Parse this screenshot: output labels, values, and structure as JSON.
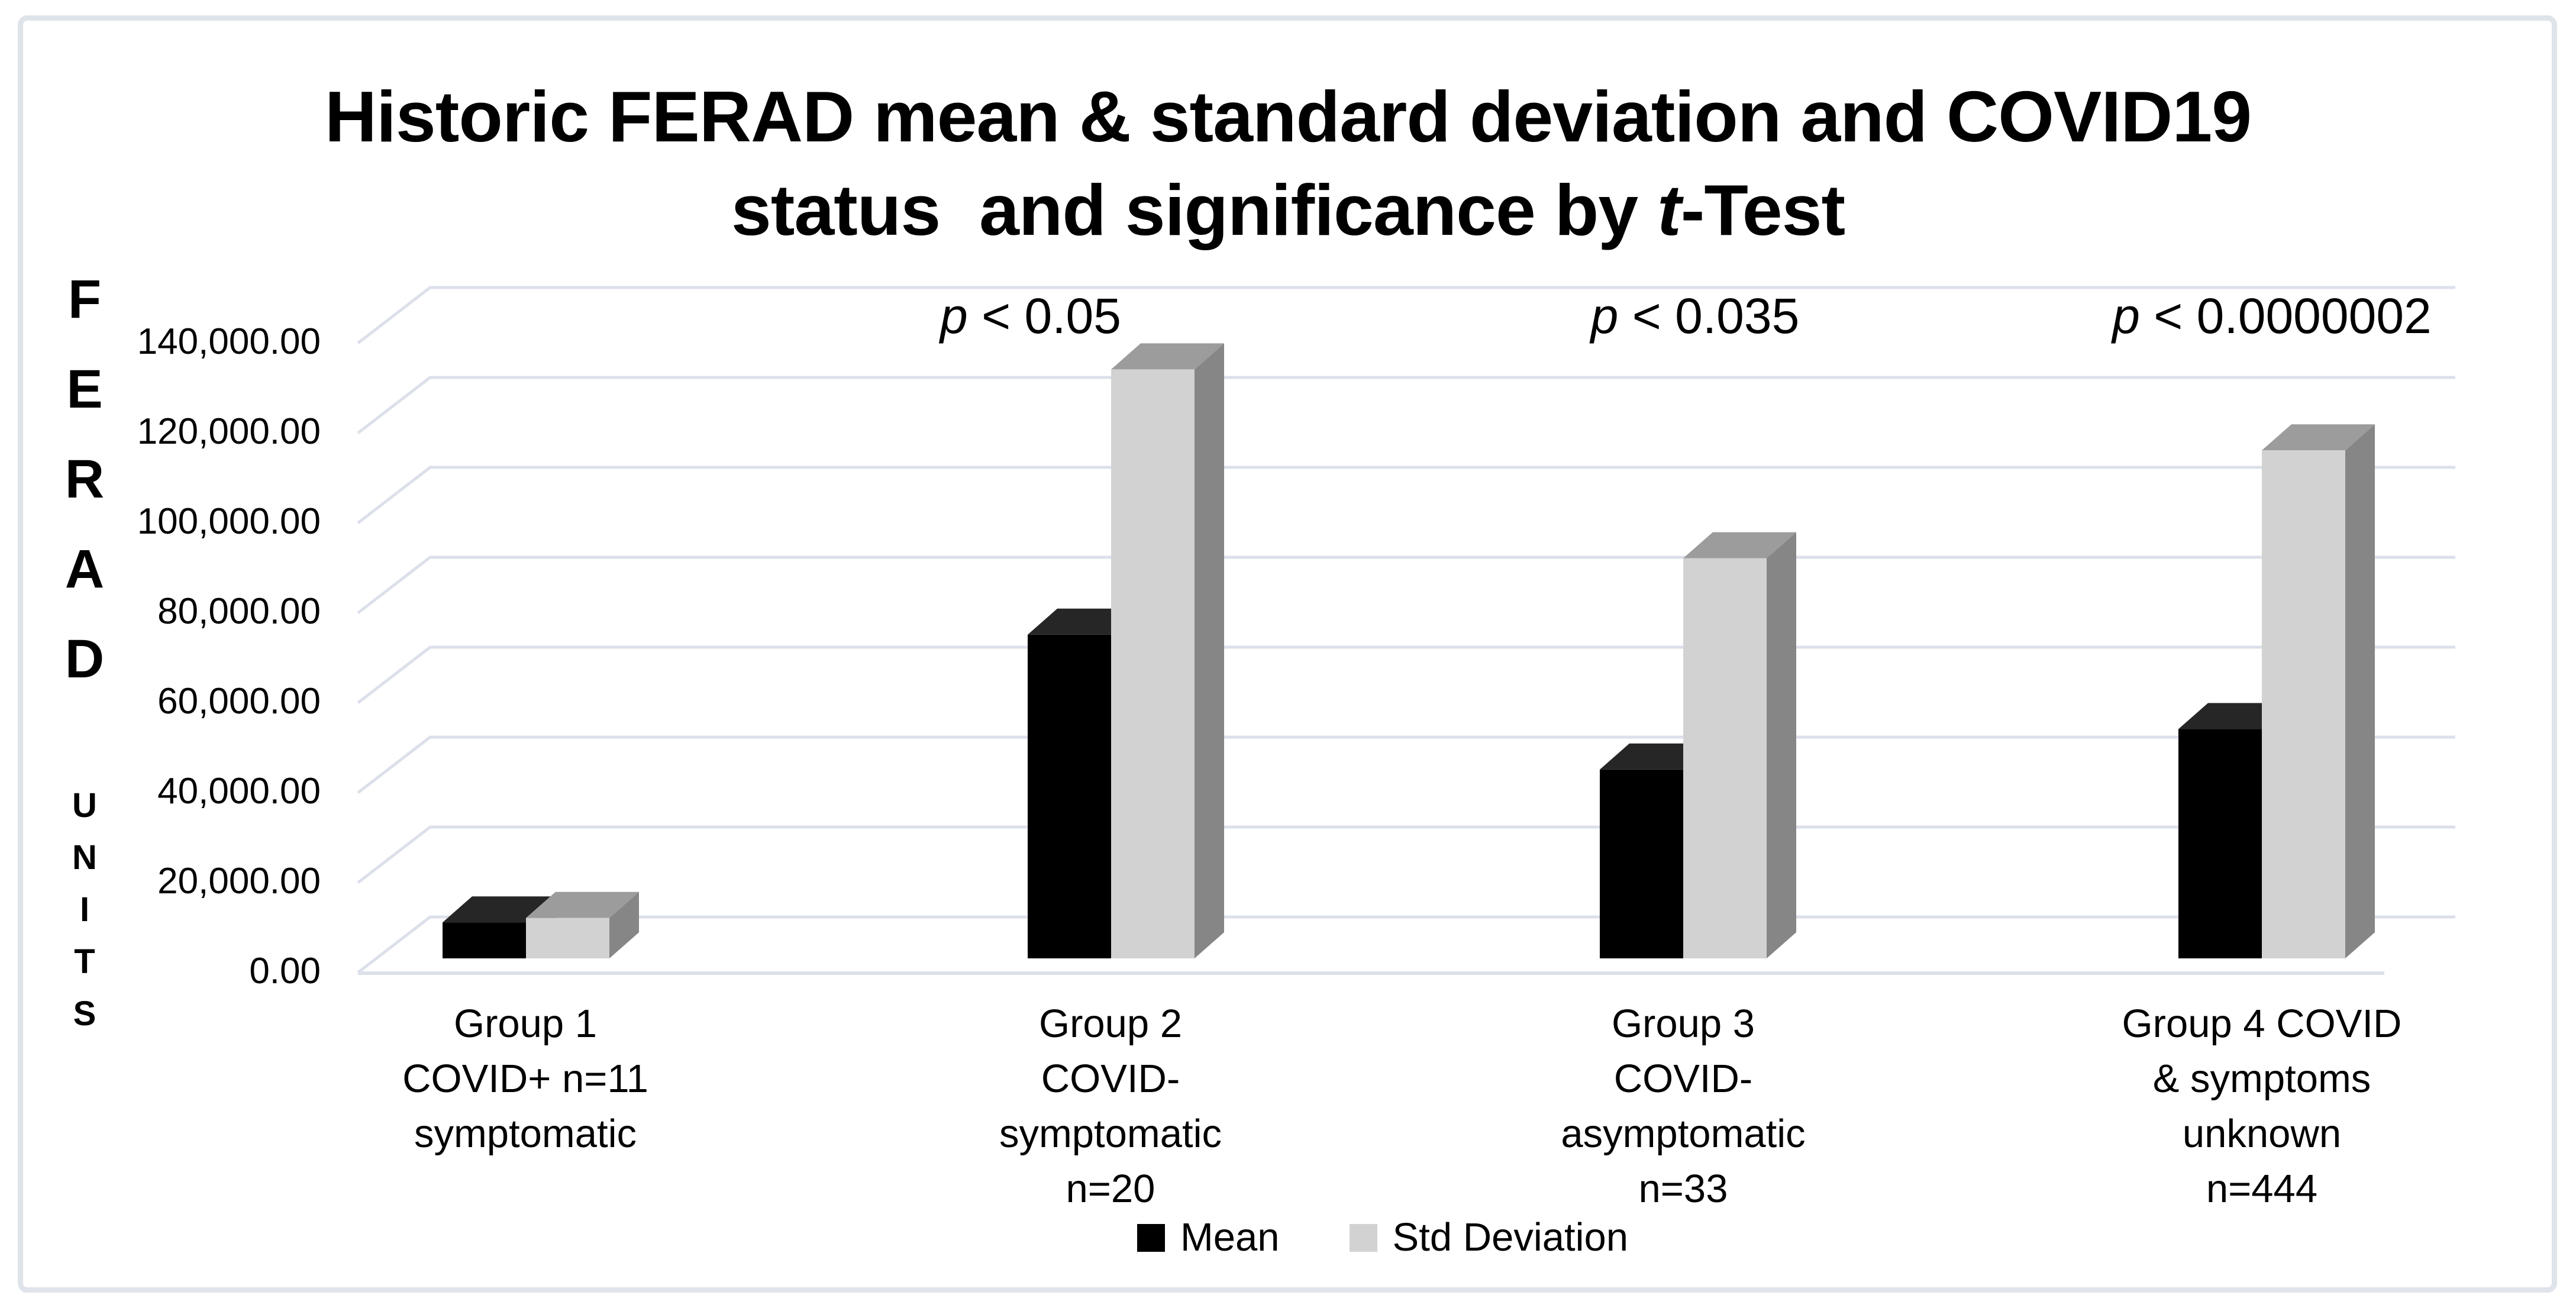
{
  "frame": {
    "border_color": "#dfe3ea"
  },
  "title": {
    "line1": "Historic FERAD mean & standard deviation and COVID19",
    "line2_prefix": "status  and significance by ",
    "line2_italic": "t",
    "line2_suffix": "-Test"
  },
  "y_axis": {
    "title_top": "FERAD",
    "title_bottom": "UNITS",
    "tick_labels_top_to_bottom": [
      "140,000.00",
      "120,000.00",
      "100,000.00",
      "80,000.00",
      "60,000.00",
      "40,000.00",
      "20,000.00",
      "0.00"
    ]
  },
  "legend": {
    "items": [
      {
        "label": "Mean",
        "swatch_color": "#000000"
      },
      {
        "label": "Std Deviation",
        "swatch_color": "#d2d2d2"
      }
    ]
  },
  "colors": {
    "gridline": "#dce0ea",
    "mean_front": "#000000",
    "mean_top": "#262626",
    "mean_side": "#111111",
    "std_front": "#d2d2d2",
    "std_top": "#9c9c9c",
    "std_side": "#868686"
  },
  "chart_data": {
    "type": "bar",
    "style": "3d-clustered-column",
    "title": "Historic FERAD mean & standard deviation and COVID19 status  and significance by t-Test",
    "ylabel": "FERAD UNITS",
    "ylim": [
      0,
      140000
    ],
    "y_tick_interval": 20000,
    "y_tick_format": "#,##0.00",
    "grid": true,
    "legend_position": "bottom",
    "categories": [
      {
        "lines": [
          "Group 1",
          "COVID+ n=11",
          "symptomatic"
        ],
        "annotation": ""
      },
      {
        "lines": [
          "Group 2",
          "COVID-",
          "symptomatic",
          "n=20"
        ],
        "annotation": "p < 0.05"
      },
      {
        "lines": [
          "Group 3",
          "COVID-",
          "asymptomatic",
          "n=33"
        ],
        "annotation": "p < 0.035"
      },
      {
        "lines": [
          "Group 4 COVID",
          "& symptoms",
          "unknown",
          "n=444"
        ],
        "annotation": "p < 0.0000002"
      }
    ],
    "series": [
      {
        "name": "Mean",
        "color": "#000000",
        "values": [
          8000,
          72000,
          42000,
          51000
        ]
      },
      {
        "name": "Std Deviation",
        "color": "#d2d2d2",
        "values": [
          9000,
          131000,
          89000,
          113000
        ]
      }
    ]
  }
}
